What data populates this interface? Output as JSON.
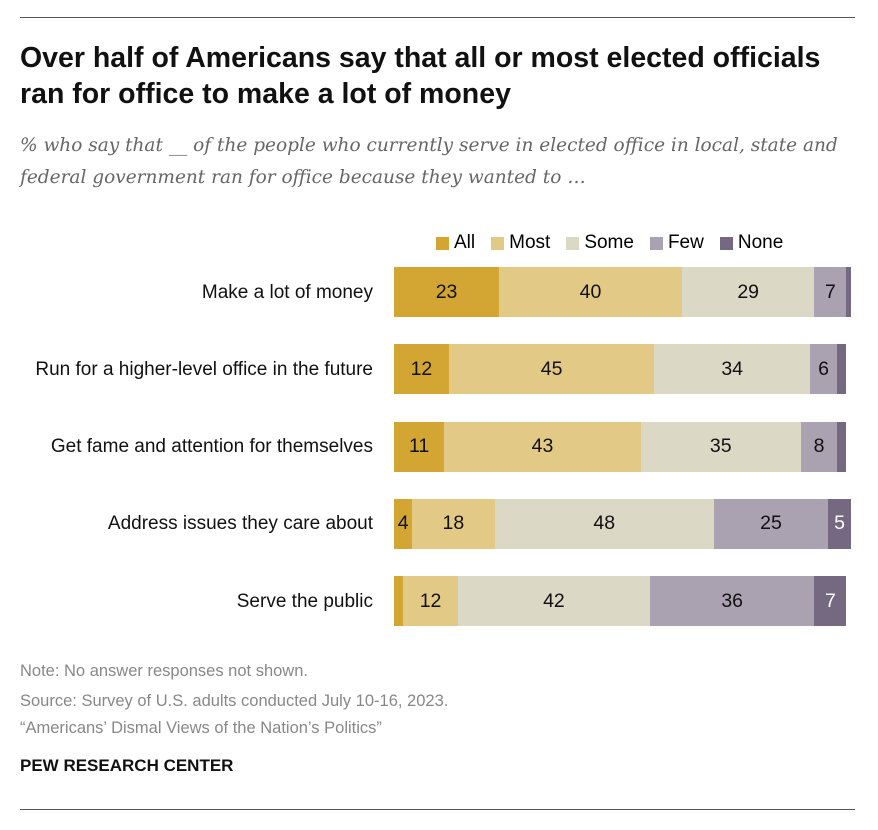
{
  "chart_data": {
    "type": "bar",
    "orientation": "horizontal",
    "stacked": true,
    "title": "Over half of Americans say that all or most elected officials ran for office to make a lot of money",
    "subtitle": "% who say that __ of the people who currently serve in elected office in local, state and federal government ran for office because they wanted to …",
    "categories": [
      "Make a lot of money",
      "Run for a higher-level office in the future",
      "Get fame and attention for themselves",
      "Address issues they care about",
      "Serve the public"
    ],
    "series": [
      {
        "name": "All",
        "color": "#d3a634",
        "values": [
          23,
          12,
          11,
          4,
          2
        ]
      },
      {
        "name": "Most",
        "color": "#e2c985",
        "values": [
          40,
          45,
          43,
          18,
          12
        ]
      },
      {
        "name": "Some",
        "color": "#dbd8c6",
        "values": [
          29,
          34,
          35,
          48,
          42
        ]
      },
      {
        "name": "Few",
        "color": "#aaa1b1",
        "values": [
          7,
          6,
          8,
          25,
          36
        ]
      },
      {
        "name": "None",
        "color": "#756982",
        "values": [
          1,
          2,
          2,
          5,
          7
        ]
      }
    ],
    "legend": "top"
  },
  "footer": {
    "note": "Note: No answer responses not shown.",
    "source": "Source: Survey of U.S. adults conducted July 10-16, 2023.",
    "report": "“Americans’ Dismal Views of the Nation’s Politics”",
    "brand": "PEW RESEARCH CENTER"
  }
}
